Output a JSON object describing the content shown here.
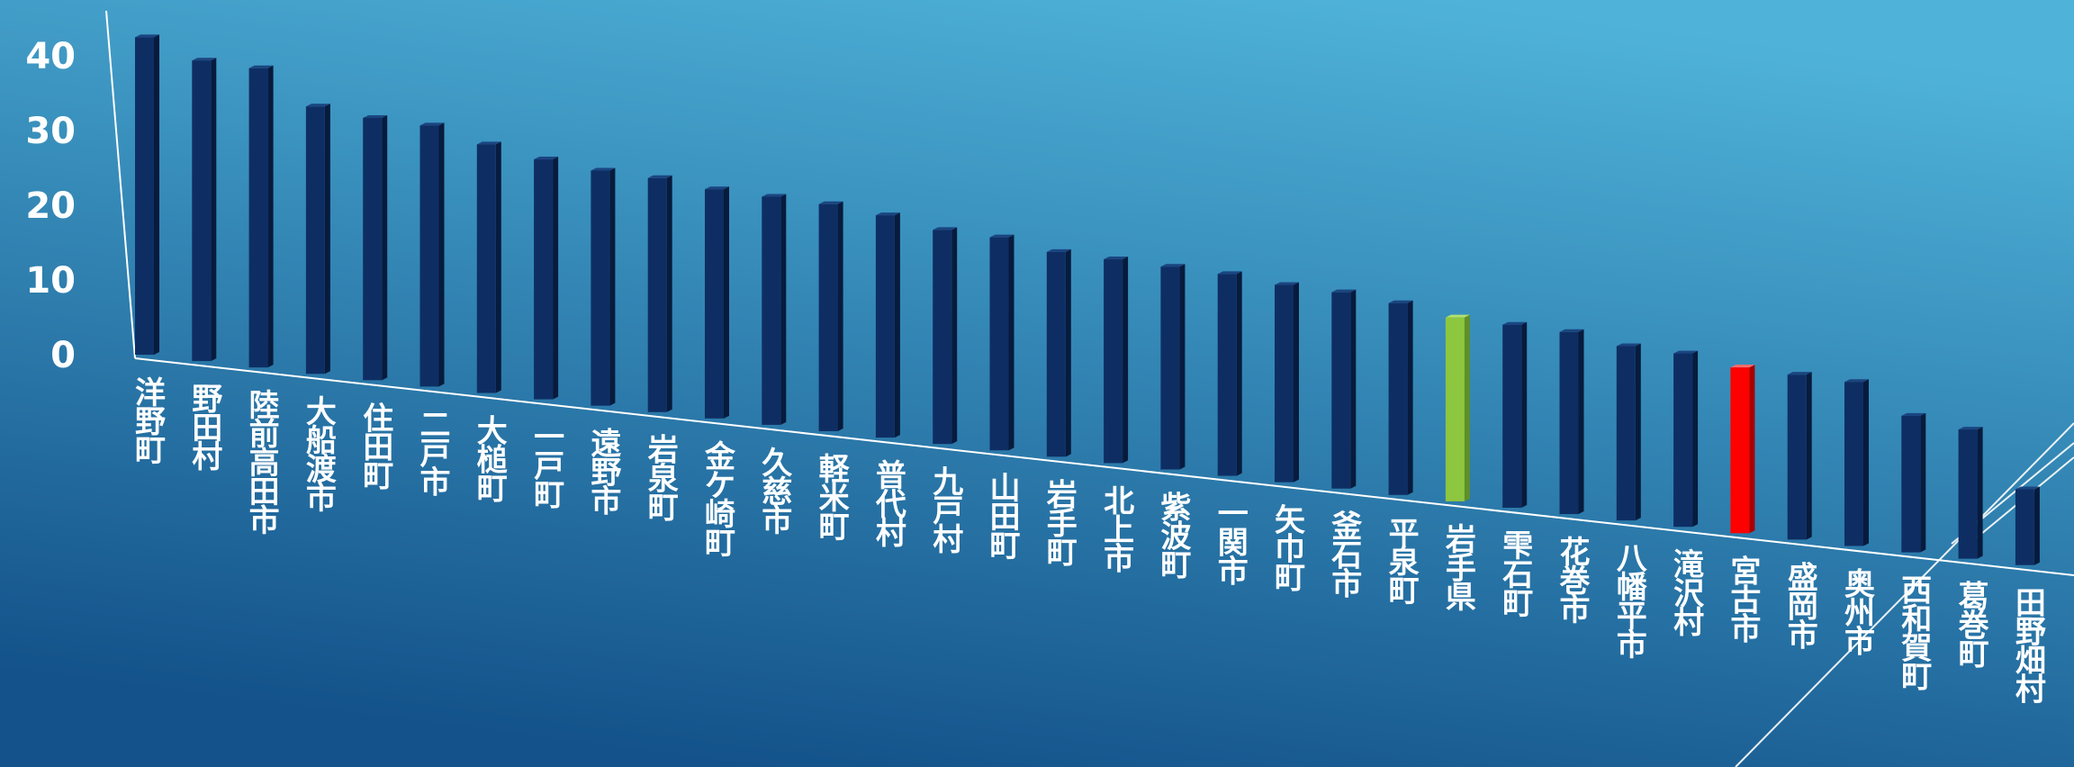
{
  "colors": {
    "background_top": "#4fb3d9",
    "background_bottom": "#13528a",
    "bar_front": "#0e2e63",
    "bar_side": "#071b3d",
    "bar_top": "#1b4580",
    "highlight_prefecture": "#8dc63f",
    "highlight_prefecture_side": "#5f8f27",
    "highlight_prefecture_top": "#b2e070",
    "highlight_city": "#ff0000",
    "highlight_city_side": "#a80000",
    "highlight_city_top": "#ff6a6a",
    "axis": "#ffffff",
    "label": "#ffffff"
  },
  "chart_data": {
    "type": "bar",
    "title": "",
    "xlabel": "",
    "ylabel": "",
    "ylim": [
      0,
      40
    ],
    "yticks": [
      0,
      10,
      20,
      30,
      40
    ],
    "grid": false,
    "legend": "none",
    "perspective": "3d-tilted",
    "categories": [
      "洋野町",
      "野田村",
      "陸前高田市",
      "大船渡市",
      "住田町",
      "二戸市",
      "大槌町",
      "一戸町",
      "遠野市",
      "岩泉町",
      "金ケ崎町",
      "久慈市",
      "軽米町",
      "普代村",
      "九戸村",
      "山田町",
      "岩手町",
      "北上市",
      "紫波町",
      "一関市",
      "矢巾町",
      "釜石市",
      "平泉町",
      "岩手県",
      "雫石町",
      "花巻市",
      "八幡平市",
      "滝沢村",
      "宮古市",
      "盛岡市",
      "奥州市",
      "西和賀町",
      "葛巻町",
      "田野畑村"
    ],
    "values": [
      41,
      39,
      39,
      35,
      34.5,
      34.5,
      33,
      32,
      31.5,
      31.5,
      31,
      31,
      31,
      30.5,
      29.5,
      29.5,
      28.5,
      28.5,
      28.5,
      28.5,
      28,
      28,
      27.5,
      26.5,
      26.5,
      26.5,
      25.5,
      25.5,
      24.5,
      24.5,
      24.5,
      20.5,
      19.5,
      11.5
    ],
    "highlights": {
      "岩手県": "highlight_prefecture",
      "宮古市": "highlight_city"
    }
  }
}
